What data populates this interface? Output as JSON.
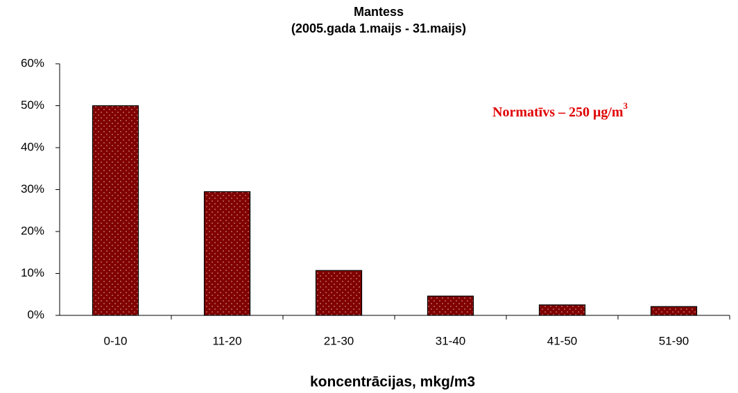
{
  "chart_data": {
    "type": "bar",
    "title": [
      "Mantess",
      "(2005.gada 1.maijs - 31.maijs)"
    ],
    "x_label": "koncentrācijas, mkg/m3",
    "annotation": {
      "text": "Normatīvs – 250 μg/m",
      "sup": "3"
    },
    "categories": [
      "0-10",
      "11-20",
      "21-30",
      "31-40",
      "41-50",
      "51-90"
    ],
    "values": [
      50,
      29.5,
      10.7,
      4.6,
      2.5,
      2.1
    ],
    "color": "#800000",
    "ylim": [
      0,
      60
    ],
    "yticks": [
      {
        "value": 0,
        "label": "0%"
      },
      {
        "value": 10,
        "label": "10%"
      },
      {
        "value": 20,
        "label": "20%"
      },
      {
        "value": 30,
        "label": "30%"
      },
      {
        "value": 40,
        "label": "40%"
      },
      {
        "value": 50,
        "label": "50%"
      },
      {
        "value": 60,
        "label": "60%"
      }
    ]
  }
}
